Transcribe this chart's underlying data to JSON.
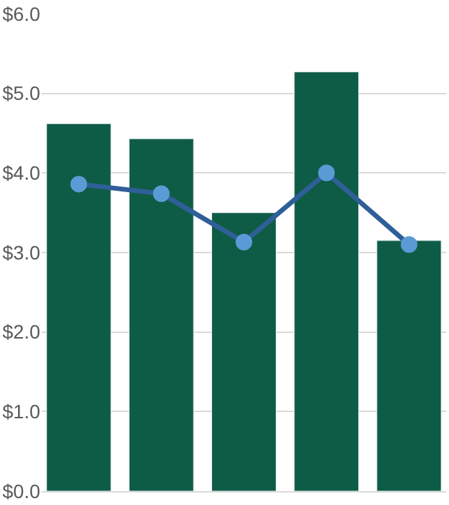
{
  "chart_data": {
    "type": "bar",
    "categories": [
      null,
      null,
      null,
      null,
      null
    ],
    "series": [
      {
        "color": "#0e5c45",
        "values": [
          4.62,
          4.43,
          3.5,
          5.27,
          3.15
        ]
      },
      {
        "type": "line",
        "color": "#2f5f98",
        "values": [
          3.86,
          3.74,
          3.13,
          4.0,
          3.1
        ]
      }
    ],
    "ylim": [
      0,
      6
    ],
    "yticks": [
      {
        "value": 0,
        "label": "$0.0"
      },
      {
        "value": 1,
        "label": "$1.0"
      },
      {
        "value": 2,
        "label": "$2.0"
      },
      {
        "value": 3,
        "label": "$3.0"
      },
      {
        "value": 4,
        "label": "$4.0"
      },
      {
        "value": 5,
        "label": "$5.0"
      },
      {
        "value": 6,
        "label": "$6.0"
      }
    ],
    "grid": "y",
    "marker": "circle",
    "line_style": "solid",
    "tick_labels": "y"
  }
}
